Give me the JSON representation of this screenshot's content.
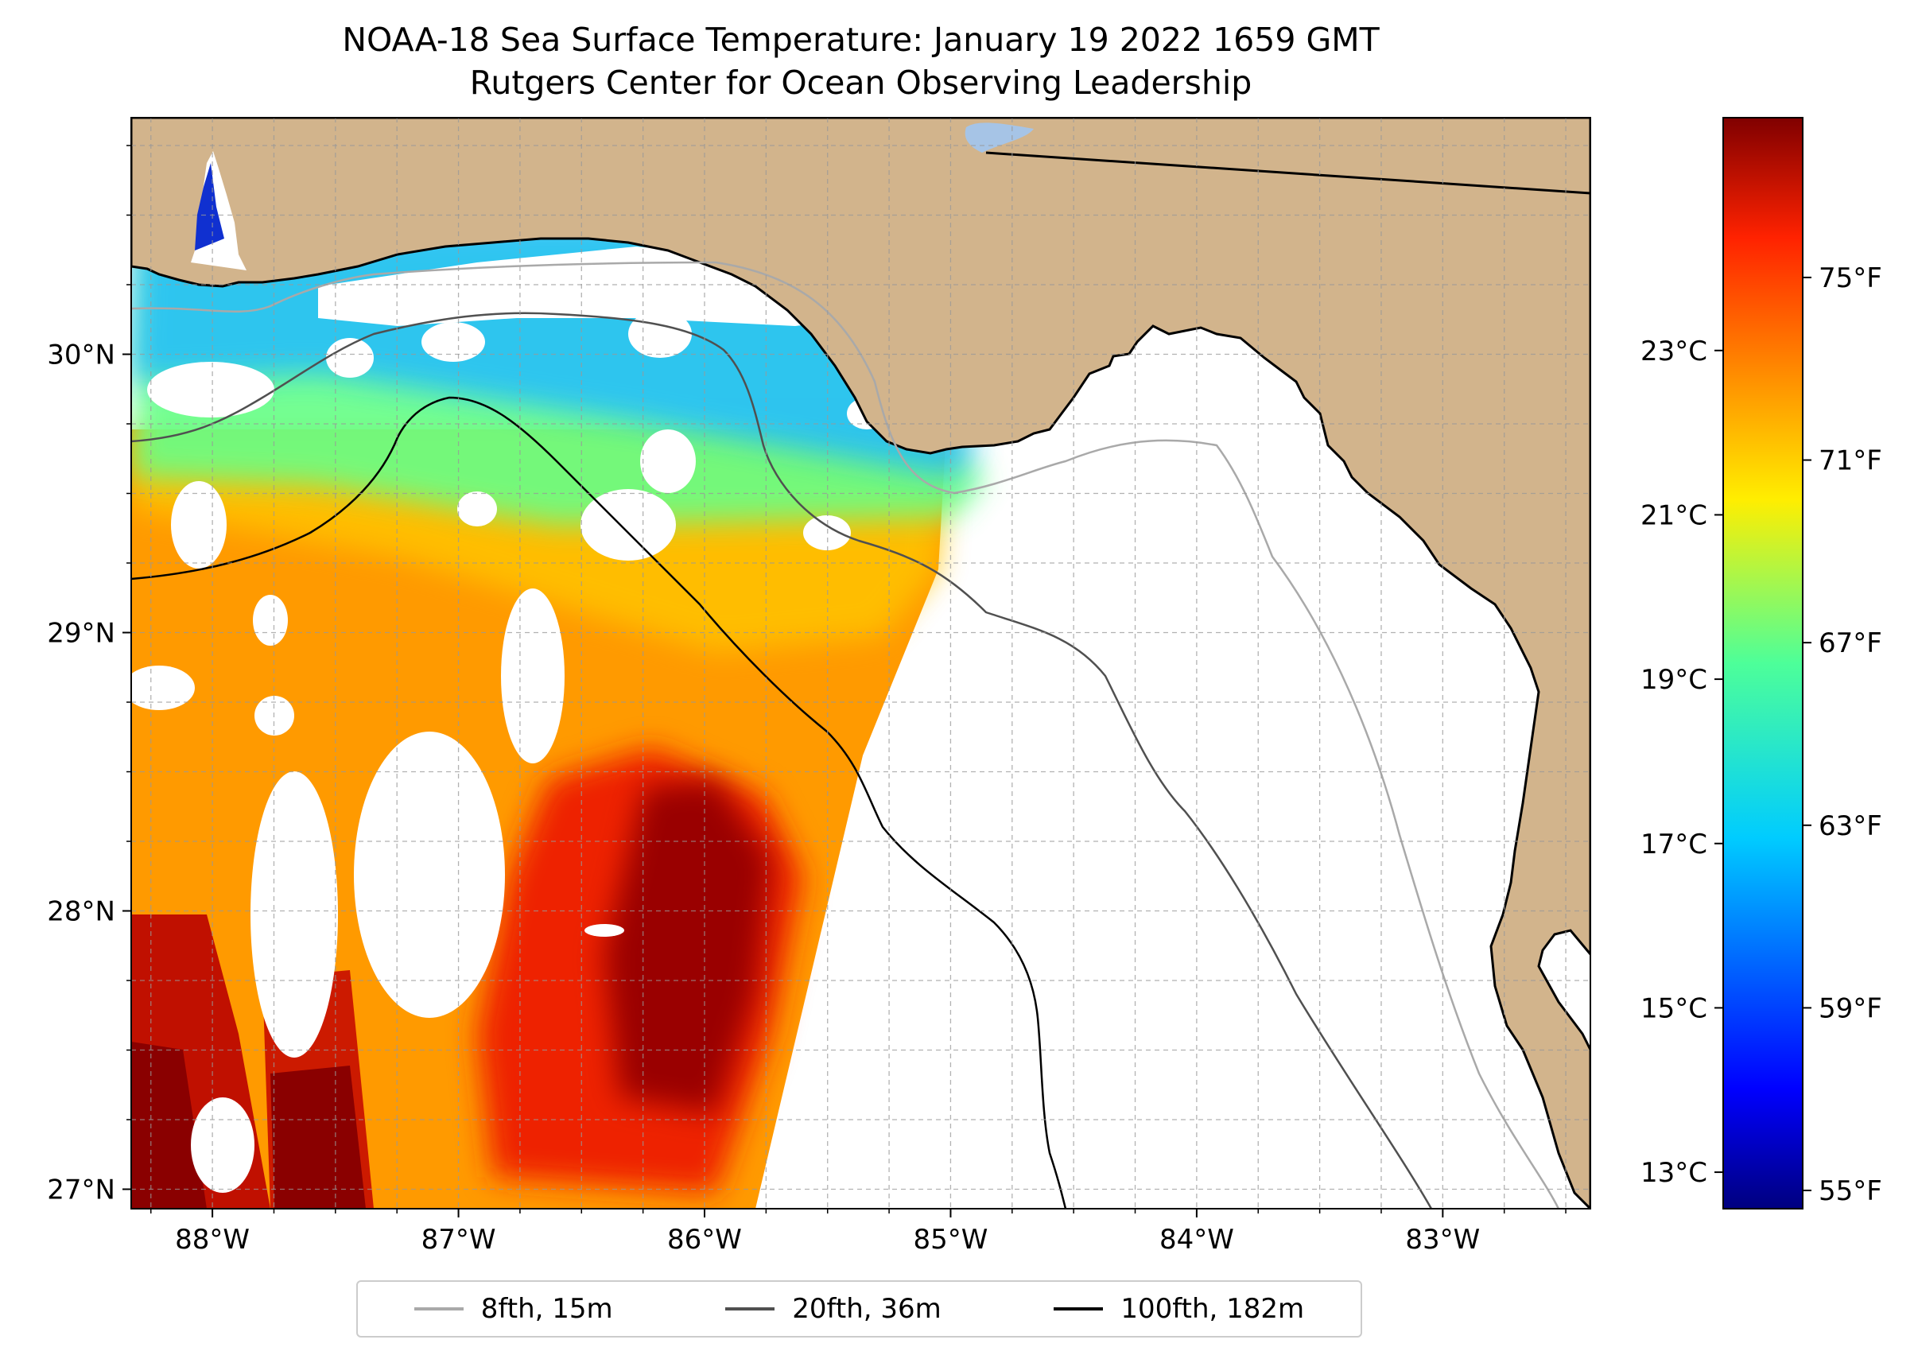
{
  "title": {
    "line1": "NOAA-18 Sea Surface Temperature: January 19 2022 1659 GMT",
    "line2": "Rutgers Center for Ocean Observing Leadership"
  },
  "map": {
    "lon_range": [
      -88.33,
      -82.4
    ],
    "lat_range": [
      26.93,
      30.85
    ],
    "lon_ticks": [
      {
        "value": -88,
        "label": "88°W"
      },
      {
        "value": -87,
        "label": "87°W"
      },
      {
        "value": -86,
        "label": "86°W"
      },
      {
        "value": -85,
        "label": "85°W"
      },
      {
        "value": -84,
        "label": "84°W"
      },
      {
        "value": -83,
        "label": "83°W"
      }
    ],
    "lat_ticks": [
      {
        "value": 30,
        "label": "30°N"
      },
      {
        "value": 29,
        "label": "29°N"
      },
      {
        "value": 28,
        "label": "28°N"
      },
      {
        "value": 27,
        "label": "27°N"
      }
    ],
    "grid": "on, dashed, every 0.25°",
    "land_color": "#d2b48c",
    "ocean_no_data_color": "#ffffff"
  },
  "colorbar": {
    "colormap": "jet",
    "range_f": [
      54.6,
      78.5
    ],
    "fahrenheit_labels": [
      "75°F",
      "71°F",
      "67°F",
      "63°F",
      "59°F",
      "55°F"
    ],
    "fahrenheit_values": [
      75,
      71,
      67,
      63,
      59,
      55
    ],
    "celsius_labels": [
      "23°C",
      "21°C",
      "19°C",
      "17°C",
      "15°C",
      "13°C"
    ],
    "celsius_values": [
      23,
      21,
      19,
      17,
      15,
      13
    ]
  },
  "legend": {
    "items": [
      {
        "label": "8fth, 15m",
        "color": "#a9a9a9"
      },
      {
        "label": "20fth, 36m",
        "color": "#505050"
      },
      {
        "label": "100fth, 182m",
        "color": "#000000"
      }
    ]
  }
}
